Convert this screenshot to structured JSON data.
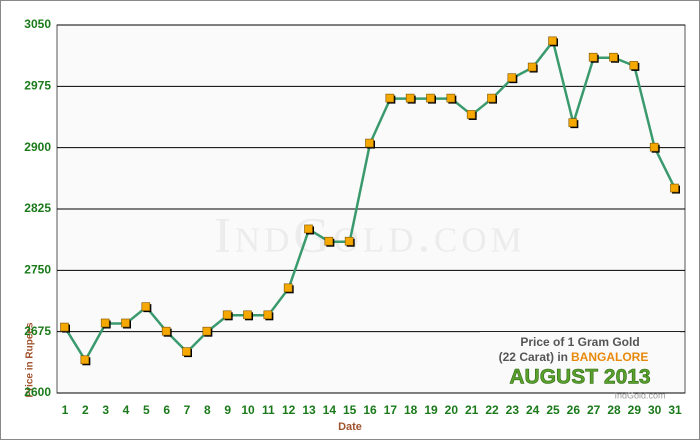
{
  "chart_data": {
    "type": "line",
    "categories": [
      "1",
      "2",
      "3",
      "4",
      "5",
      "6",
      "7",
      "8",
      "9",
      "10",
      "11",
      "12",
      "13",
      "14",
      "15",
      "16",
      "17",
      "18",
      "19",
      "20",
      "21",
      "22",
      "23",
      "24",
      "25",
      "26",
      "27",
      "28",
      "29",
      "30",
      "31"
    ],
    "values": [
      2680,
      2640,
      2685,
      2685,
      2705,
      2675,
      2650,
      2675,
      2695,
      2695,
      2695,
      2728,
      2800,
      2785,
      2785,
      2905,
      2960,
      2960,
      2960,
      2960,
      2940,
      2960,
      2985,
      2998,
      3030,
      2930,
      3010,
      3010,
      3000,
      2900,
      2850
    ],
    "color": "#3a9a6e",
    "marker_color": "#f5a800",
    "ylim": [
      2600,
      3050
    ],
    "yticks": [
      2600,
      2675,
      2750,
      2825,
      2900,
      2975,
      3050
    ],
    "grid": true,
    "x_label": "Date",
    "y_label": "Price in Rupees",
    "watermark": "IndGold.com",
    "annotation": {
      "line1": "Price of 1 Gram Gold",
      "line2": "(22 Carat) in",
      "city": "BANGALORE",
      "month": "AUGUST 2013",
      "site": "IndGold.com"
    }
  }
}
